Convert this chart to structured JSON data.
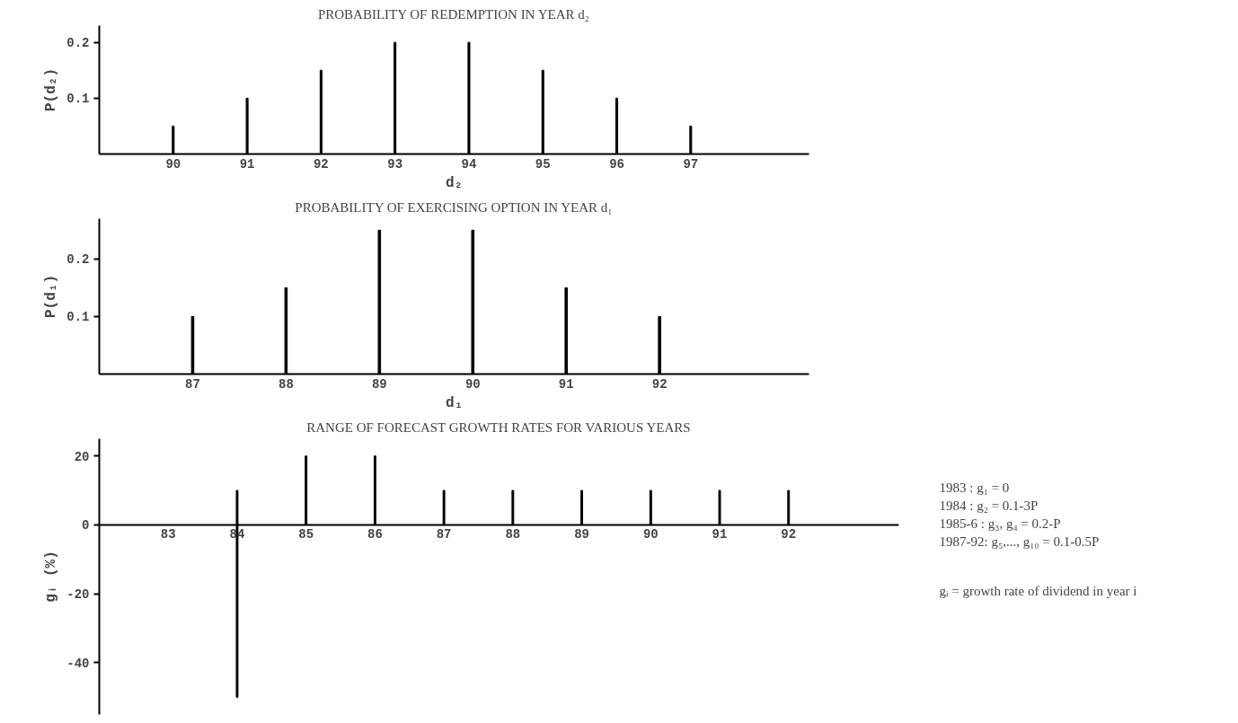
{
  "chart_data": [
    {
      "type": "bar",
      "title": "PROBABILITY OF REDEMPTION IN YEAR d₂",
      "xlabel": "d₂",
      "ylabel": "P(d₂)",
      "categories": [
        "90",
        "91",
        "92",
        "93",
        "94",
        "95",
        "96",
        "97"
      ],
      "values": [
        0.05,
        0.1,
        0.15,
        0.2,
        0.2,
        0.15,
        0.1,
        0.05
      ],
      "color": "#000000",
      "ylim": [
        0,
        0.23
      ],
      "yticks": [
        0.1,
        0.2
      ],
      "grid": false
    },
    {
      "type": "bar",
      "title": "PROBABILITY OF EXERCISING OPTION IN YEAR d₁",
      "xlabel": "d₁",
      "ylabel": "P(d₁)",
      "categories": [
        "87",
        "88",
        "89",
        "90",
        "91",
        "92"
      ],
      "values": [
        0.1,
        0.15,
        0.25,
        0.25,
        0.15,
        0.1
      ],
      "color": "#000000",
      "ylim": [
        0,
        0.27
      ],
      "yticks": [
        0.1,
        0.2
      ],
      "grid": false
    },
    {
      "type": "bar",
      "title": "RANGE OF FORECAST GROWTH RATES FOR VARIOUS YEARS",
      "ylabel": "gᵢ (%)",
      "categories": [
        "83",
        "84",
        "85",
        "86",
        "87",
        "88",
        "89",
        "90",
        "91",
        "92"
      ],
      "base": [
        0,
        -50,
        0,
        0,
        0,
        0,
        0,
        0,
        0,
        0
      ],
      "values": [
        0,
        60,
        20,
        20,
        10,
        10,
        10,
        10,
        10,
        10
      ],
      "color": "#000000",
      "ylim": [
        -55,
        25
      ],
      "yticks": [
        -40,
        -20,
        0,
        20
      ],
      "grid": false,
      "annotations": [
        "1983    : g₁ = 0",
        "1984    : g₂ = 0.1-3P",
        "1985-6  : g₃, g₄ = 0.2-P",
        "1987-92: g₅,..., g₁₀ = 0.1-0.5P",
        "gᵢ = growth rate of dividend in year i"
      ]
    }
  ]
}
